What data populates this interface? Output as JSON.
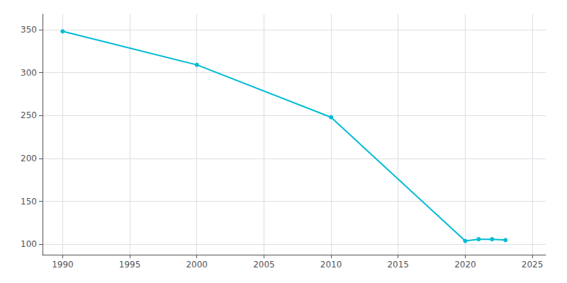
{
  "chart_data": {
    "type": "line",
    "x": [
      1990,
      2000,
      2010,
      2020,
      2021,
      2022,
      2023
    ],
    "values": [
      348,
      309,
      248,
      104,
      106,
      106,
      105
    ],
    "color": "#00bcd4",
    "marker": "circle",
    "xlim": [
      1988.5,
      2026
    ],
    "xticks": [
      1990,
      1995,
      2000,
      2005,
      2010,
      2015,
      2020,
      2025
    ],
    "ylim": [
      88,
      368
    ],
    "yticks": [
      100,
      150,
      200,
      250,
      300,
      350
    ],
    "grid": true
  }
}
